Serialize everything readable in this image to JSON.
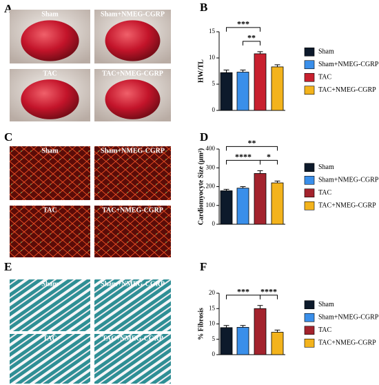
{
  "panels": [
    {
      "letter": "A",
      "images": [
        "Sham",
        "Sham+NMEG-CGRP",
        "TAC",
        "TAC+NMEG-CGRP"
      ]
    },
    {
      "letter": "C",
      "images": [
        "Sham",
        "Sham+NMEG-CGRP",
        "TAC",
        "TAC+NMEG-CGRP"
      ]
    },
    {
      "letter": "E",
      "images": [
        "Sham",
        "Sham+NMEG-CGRP",
        "TAC",
        "TAC+NMEG-CGRP"
      ]
    }
  ],
  "chart_data": [
    {
      "type": "bar",
      "panel": "B",
      "y_label": "HW/TL",
      "categories": [
        "Sham",
        "Sham+NMEG-CGRP",
        "TAC",
        "TAC+NMEG-CGRP"
      ],
      "values": [
        7.2,
        7.3,
        10.8,
        8.3
      ],
      "errors": [
        0.5,
        0.4,
        0.4,
        0.4
      ],
      "colors": [
        "#0d1a2b",
        "#3a8fea",
        "#c8202f",
        "#f3b31c"
      ],
      "ylim": [
        0,
        15
      ],
      "yticks": [
        0,
        5,
        10,
        15
      ],
      "legend": "right",
      "annotations": [
        {
          "text": "***",
          "from": "Sham",
          "to": "TAC"
        },
        {
          "text": "**",
          "from": "Sham+NMEG-CGRP",
          "to": "TAC"
        }
      ]
    },
    {
      "type": "bar",
      "panel": "D",
      "y_label": "Cardiomyocyte Size (μm²)",
      "categories": [
        "Sham",
        "Sham+NMEG-CGRP",
        "TAC",
        "TAC+NMEG-CGRP"
      ],
      "values": [
        178,
        192,
        270,
        220
      ],
      "errors": [
        8,
        8,
        15,
        10
      ],
      "colors": [
        "#0d1a2b",
        "#3a8fea",
        "#a3232d",
        "#f3b31c"
      ],
      "ylim": [
        0,
        400
      ],
      "yticks": [
        0,
        100,
        200,
        300,
        400
      ],
      "legend": "right",
      "annotations": [
        {
          "text": "**",
          "from": "Sham",
          "to": "TAC+NMEG-CGRP"
        },
        {
          "text": "****",
          "from": "Sham",
          "to": "TAC"
        },
        {
          "text": "*",
          "from": "TAC",
          "to": "TAC+NMEG-CGRP"
        }
      ]
    },
    {
      "type": "bar",
      "panel": "F",
      "y_label": "% Fibrosis",
      "categories": [
        "Sham",
        "Sham+NMEG-CGRP",
        "TAC",
        "TAC+NMEG-CGRP"
      ],
      "values": [
        8.8,
        8.9,
        15,
        7.3
      ],
      "errors": [
        0.7,
        0.6,
        1.0,
        0.7
      ],
      "colors": [
        "#0d1a2b",
        "#3a8fea",
        "#a3232d",
        "#f3b31c"
      ],
      "ylim": [
        0,
        20
      ],
      "yticks": [
        0,
        5,
        10,
        15,
        20
      ],
      "legend": "right",
      "annotations": [
        {
          "text": "***",
          "from": "Sham",
          "to": "TAC"
        },
        {
          "text": "****",
          "from": "TAC",
          "to": "TAC+NMEG-CGRP"
        }
      ]
    }
  ]
}
